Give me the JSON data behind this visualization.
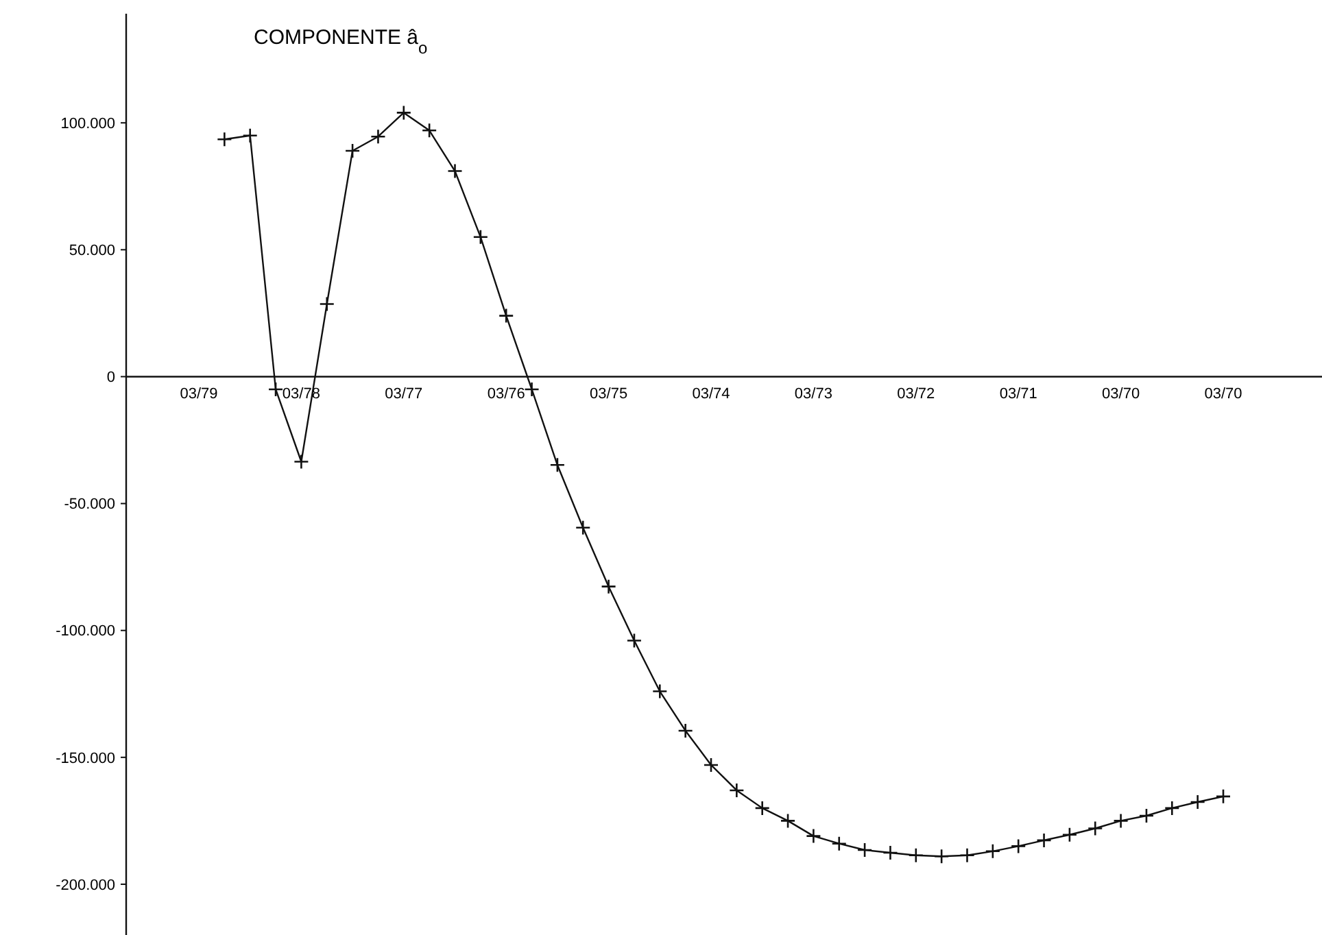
{
  "chart_data": {
    "type": "line",
    "title": "COMPONENTE â$_{o}$",
    "marker": "cross",
    "line_style": "solid",
    "categories": [
      "03/79",
      null,
      null,
      null,
      "03/78",
      null,
      null,
      null,
      "03/77",
      null,
      null,
      null,
      "03/76",
      null,
      null,
      null,
      "03/75",
      null,
      null,
      null,
      "03/74",
      null,
      null,
      null,
      "03/73",
      null,
      null,
      null,
      "03/72",
      null,
      null,
      null,
      "03/71",
      null,
      null,
      null,
      "03/70",
      null,
      null,
      null,
      "03/70"
    ],
    "series": [
      {
        "color": "#111111",
        "values": [
          null,
          93500,
          95000,
          -5000,
          -33500,
          28600,
          89000,
          94600,
          104000,
          97000,
          81000,
          55000,
          24000,
          -5000,
          -34800,
          -59500,
          -82700,
          -104000,
          -124000,
          -139500,
          -153000,
          -163000,
          -170000,
          -175000,
          -181000,
          -184000,
          -186500,
          -187600,
          -188600,
          -189000,
          -188600,
          -187000,
          -185000,
          -182700,
          -180500,
          -178000,
          -175000,
          -173000,
          -170000,
          -167600,
          -165400
        ]
      }
    ],
    "ylim": [
      -220000,
      143000
    ],
    "yticks": [
      {
        "value": 100000,
        "label": "100.000"
      },
      {
        "value": 50000,
        "label": "50.000"
      },
      0,
      {
        "value": -50000,
        "label": "-50.000"
      },
      {
        "value": -100000,
        "label": "-100.000"
      },
      {
        "value": -150000,
        "label": "-150.000"
      },
      {
        "value": -200000,
        "label": "-200.000"
      }
    ]
  }
}
